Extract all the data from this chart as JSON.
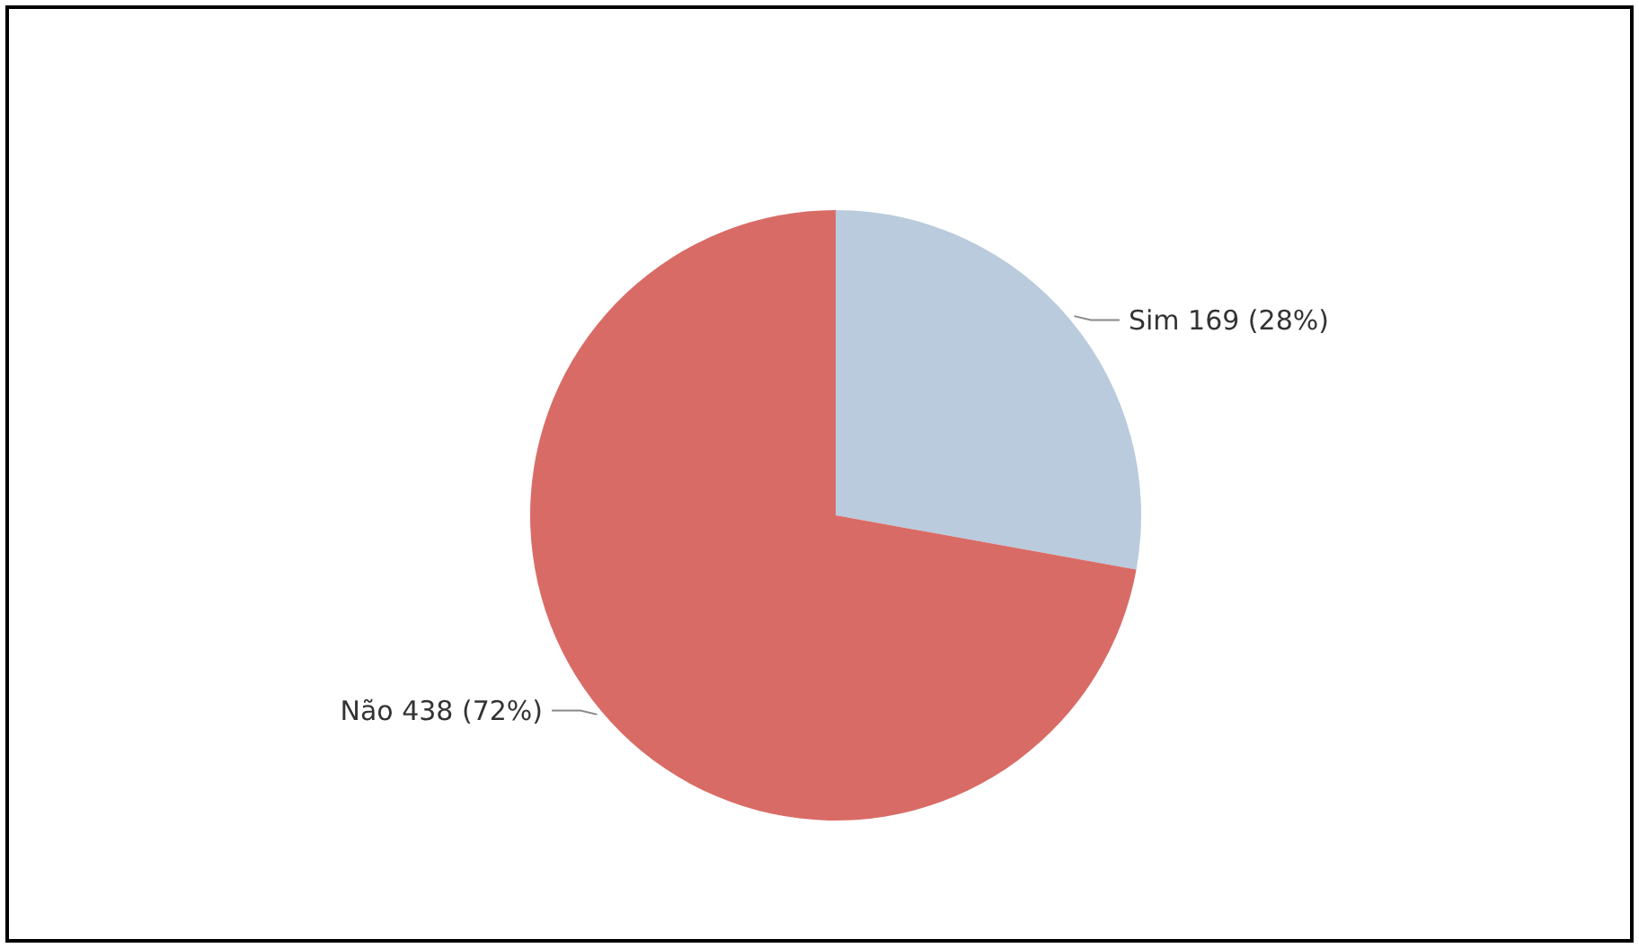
{
  "chart_data": {
    "type": "pie",
    "categories": [
      "Sim",
      "Não"
    ],
    "values": [
      169,
      438
    ],
    "colors": [
      "#b9cbdc",
      "#d96b66"
    ],
    "value_labels": [
      "169 (28%)",
      "438 (72%)"
    ]
  }
}
